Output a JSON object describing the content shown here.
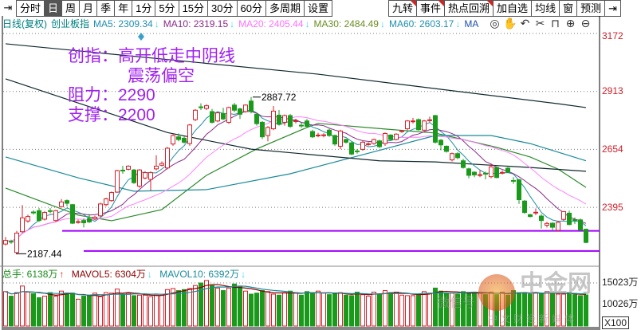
{
  "toolbar": {
    "left_icon": "pin-arrow-icon",
    "tabs": [
      "分时",
      "日",
      "周",
      "月",
      "季",
      "年",
      "1分",
      "5分",
      "15分",
      "30分",
      "60分",
      "多周期",
      "设置"
    ],
    "selected": "日",
    "right_tabs": [
      {
        "label": "九转",
        "flag": true
      },
      {
        "label": "事件",
        "flag": true
      },
      {
        "label": "热点回溯",
        "flag": true
      },
      {
        "label": "加自选",
        "flag": false
      },
      {
        "label": "均线",
        "flag": false
      },
      {
        "label": "窗",
        "flag": false
      },
      {
        "label": "预测",
        "flag": false
      }
    ],
    "right_icon": "collapse-arrow-icon"
  },
  "legend": {
    "period": "日线(复权)",
    "name": "创业板指",
    "ma": [
      {
        "label": "MA5: 2309.34",
        "color": "#1f8fb0",
        "trend": "↓"
      },
      {
        "label": "MA10: 2319.15",
        "color": "#8b2a8b",
        "trend": "↓"
      },
      {
        "label": "MA20: 2405.44",
        "color": "#ff70ff",
        "trend": "↓"
      },
      {
        "label": "MA30: 2484.49",
        "color": "#6b8e23",
        "trend": "↓"
      },
      {
        "label": "MA60: 2603.17",
        "color": "#1e90b0",
        "trend": "↓"
      },
      {
        "label": "MA",
        "color": "#1e50b0",
        "trend": ""
      }
    ],
    "trend_color": "#40d8f0"
  },
  "tools": [
    "eye-icon",
    "hand-icon",
    "undo-icon",
    "scissors-icon",
    "lock-icon",
    "zoom-in-icon",
    "zoom-out-icon"
  ],
  "annotation": {
    "line1": "创指：高开低走中阴线",
    "line2": "震荡偏空",
    "line3": "阻力：2290",
    "line4": "支撑：2200",
    "color": "#a020f0"
  },
  "chart_data": {
    "type": "candlestick",
    "price_axis": {
      "ticks": [
        3172,
        2913,
        2654,
        2395
      ],
      "labels": [
        "3172",
        "2913",
        "2654",
        "2395"
      ]
    },
    "high_label": "2887.72",
    "low_label": "2187.44",
    "up_color": "#d4202a",
    "down_color": "#1a9a1a",
    "drawn_lines": [
      {
        "price": 2290,
        "color": "#a000ff"
      },
      {
        "price": 2200,
        "color": "#a000ff"
      }
    ],
    "candles_ohlc": [
      [
        2231,
        2262,
        2225,
        2247
      ],
      [
        2243,
        2250,
        2232,
        2240
      ],
      [
        2193,
        2290,
        2187.44,
        2280
      ],
      [
        2286,
        2405,
        2280,
        2348
      ],
      [
        2334,
        2362,
        2326,
        2354
      ],
      [
        2374,
        2382,
        2362,
        2370
      ],
      [
        2380,
        2392,
        2330,
        2336
      ],
      [
        2342,
        2378,
        2336,
        2372
      ],
      [
        2380,
        2392,
        2368,
        2377
      ],
      [
        2336,
        2384,
        2330,
        2380
      ],
      [
        2398,
        2432,
        2395,
        2419
      ],
      [
        2425,
        2430,
        2400,
        2413
      ],
      [
        2407,
        2410,
        2320,
        2324
      ],
      [
        2328,
        2340,
        2322,
        2331
      ],
      [
        2336,
        2345,
        2305,
        2326
      ],
      [
        2344,
        2365,
        2325,
        2330
      ],
      [
        2344,
        2358,
        2338,
        2351
      ],
      [
        2357,
        2415,
        2352,
        2410
      ],
      [
        2407,
        2438,
        2400,
        2433
      ],
      [
        2425,
        2466,
        2420,
        2461
      ],
      [
        2463,
        2563,
        2460,
        2559
      ],
      [
        2561,
        2580,
        2545,
        2558
      ],
      [
        2565,
        2583,
        2560,
        2579
      ],
      [
        2562,
        2566,
        2500,
        2505
      ],
      [
        2490,
        2566,
        2482,
        2562
      ],
      [
        2526,
        2556,
        2520,
        2550
      ],
      [
        2520,
        2556,
        2470,
        2550
      ],
      [
        2567,
        2628,
        2560,
        2579
      ],
      [
        2583,
        2600,
        2578,
        2591
      ],
      [
        2571,
        2665,
        2565,
        2659
      ],
      [
        2678,
        2722,
        2670,
        2716
      ],
      [
        2710,
        2725,
        2690,
        2698
      ],
      [
        2704,
        2712,
        2680,
        2686
      ],
      [
        2680,
        2768,
        2670,
        2763
      ],
      [
        2787,
        2834,
        2780,
        2829
      ],
      [
        2844,
        2860,
        2830,
        2842
      ],
      [
        2837,
        2855,
        2830,
        2849
      ],
      [
        2823,
        2835,
        2770,
        2775
      ],
      [
        2781,
        2822,
        2775,
        2817
      ],
      [
        2814,
        2840,
        2785,
        2790
      ],
      [
        2775,
        2845,
        2768,
        2841
      ],
      [
        2852,
        2862,
        2820,
        2829
      ],
      [
        2835,
        2840,
        2790,
        2811
      ],
      [
        2823,
        2856,
        2818,
        2852
      ],
      [
        2870,
        2887.72,
        2815,
        2823
      ],
      [
        2811,
        2815,
        2760,
        2769
      ],
      [
        2775,
        2780,
        2700,
        2710
      ],
      [
        2716,
        2758,
        2690,
        2752
      ],
      [
        2746,
        2848,
        2740,
        2825
      ],
      [
        2807,
        2830,
        2760,
        2766
      ],
      [
        2775,
        2810,
        2760,
        2805
      ],
      [
        2805,
        2812,
        2750,
        2757
      ],
      [
        2779,
        2790,
        2770,
        2782
      ],
      [
        2762,
        2775,
        2750,
        2760
      ],
      [
        2781,
        2790,
        2750,
        2757
      ],
      [
        2734,
        2742,
        2705,
        2710
      ],
      [
        2716,
        2728,
        2708,
        2718
      ],
      [
        2716,
        2726,
        2708,
        2719
      ],
      [
        2740,
        2746,
        2710,
        2716
      ],
      [
        2716,
        2720,
        2670,
        2678
      ],
      [
        2668,
        2742,
        2655,
        2736
      ],
      [
        2698,
        2702,
        2680,
        2686
      ],
      [
        2683,
        2688,
        2628,
        2633
      ],
      [
        2647,
        2655,
        2635,
        2645
      ],
      [
        2654,
        2692,
        2648,
        2686
      ],
      [
        2677,
        2686,
        2670,
        2679
      ],
      [
        2680,
        2702,
        2675,
        2698
      ],
      [
        2692,
        2697,
        2660,
        2666
      ],
      [
        2680,
        2730,
        2670,
        2725
      ],
      [
        2718,
        2722,
        2695,
        2698
      ],
      [
        2698,
        2726,
        2694,
        2722
      ],
      [
        2735,
        2740,
        2728,
        2737
      ],
      [
        2746,
        2785,
        2740,
        2781
      ],
      [
        2779,
        2795,
        2770,
        2781
      ],
      [
        2787,
        2792,
        2738,
        2742
      ],
      [
        2740,
        2786,
        2735,
        2781
      ],
      [
        2784,
        2800,
        2775,
        2786
      ],
      [
        2805,
        2808,
        2680,
        2686
      ],
      [
        2695,
        2700,
        2650,
        2674
      ],
      [
        2668,
        2672,
        2640,
        2645
      ],
      [
        2607,
        2640,
        2600,
        2635
      ],
      [
        2635,
        2642,
        2610,
        2617
      ],
      [
        2603,
        2612,
        2568,
        2573
      ],
      [
        2567,
        2572,
        2525,
        2538
      ],
      [
        2552,
        2556,
        2530,
        2540
      ],
      [
        2539,
        2560,
        2530,
        2541
      ],
      [
        2547,
        2555,
        2520,
        2545
      ],
      [
        2532,
        2590,
        2525,
        2576
      ],
      [
        2573,
        2578,
        2525,
        2528
      ],
      [
        2549,
        2560,
        2542,
        2551
      ],
      [
        2570,
        2575,
        2548,
        2552
      ],
      [
        2515,
        2530,
        2500,
        2513
      ],
      [
        2518,
        2522,
        2410,
        2429
      ],
      [
        2423,
        2428,
        2366,
        2372
      ],
      [
        2362,
        2366,
        2350,
        2354
      ],
      [
        2371,
        2390,
        2360,
        2373
      ],
      [
        2356,
        2365,
        2300,
        2336
      ],
      [
        2315,
        2330,
        2305,
        2323
      ],
      [
        2324,
        2328,
        2290,
        2306
      ],
      [
        2292,
        2335,
        2288,
        2328
      ],
      [
        2341,
        2378,
        2335,
        2376
      ],
      [
        2369,
        2380,
        2315,
        2318
      ],
      [
        2340,
        2350,
        2320,
        2338
      ],
      [
        2339,
        2345,
        2290,
        2294
      ],
      [
        2297,
        2300,
        2235,
        2238
      ]
    ],
    "ma_computed": [
      {
        "period": 5,
        "color": "#1f8fa5"
      },
      {
        "period": 10,
        "color": "#8b2a8b"
      },
      {
        "period": 20,
        "color": "#ff80ff"
      }
    ],
    "ma_anchor_lines": [
      {
        "key": "ma30",
        "color": "#2a8a2a",
        "points": [
          [
            0,
            2481
          ],
          [
            13,
            2360
          ],
          [
            19,
            2335
          ],
          [
            28,
            2385
          ],
          [
            36,
            2538
          ],
          [
            45,
            2656
          ],
          [
            54,
            2752
          ],
          [
            56,
            2770
          ],
          [
            68,
            2745
          ],
          [
            77,
            2727
          ],
          [
            88,
            2663
          ],
          [
            94,
            2620
          ],
          [
            99,
            2566
          ],
          [
            104,
            2484
          ]
        ]
      },
      {
        "key": "ma60",
        "color": "#1a8a9a",
        "points": [
          [
            0,
            2620
          ],
          [
            13,
            2527
          ],
          [
            23,
            2467
          ],
          [
            36,
            2474
          ],
          [
            51,
            2545
          ],
          [
            67,
            2650
          ],
          [
            77,
            2716
          ],
          [
            87,
            2716
          ],
          [
            94,
            2680
          ],
          [
            104,
            2603
          ]
        ]
      },
      {
        "key": "ma_long_1",
        "color": "#10282e",
        "points": [
          [
            0,
            2969
          ],
          [
            29,
            2729
          ],
          [
            44,
            2655
          ],
          [
            67,
            2603
          ],
          [
            77,
            2598
          ],
          [
            94,
            2573
          ],
          [
            104,
            2556
          ]
        ]
      },
      {
        "key": "ma_long_2",
        "color": "#10282e",
        "points": [
          [
            0,
            3126
          ],
          [
            56,
            2990
          ],
          [
            99,
            2858
          ],
          [
            104,
            2841
          ]
        ]
      }
    ],
    "volume": {
      "unit": "万",
      "values": [
        6800,
        5900,
        6600,
        7900,
        6700,
        6400,
        5600,
        5900,
        6600,
        5900,
        6900,
        6500,
        6500,
        5300,
        5900,
        6000,
        6500,
        5800,
        6600,
        6500,
        7300,
        6200,
        6500,
        6000,
        6100,
        6100,
        5800,
        6100,
        6100,
        7200,
        7400,
        7000,
        7200,
        7400,
        8000,
        8500,
        9000,
        8000,
        7500,
        7000,
        7500,
        8300,
        7800,
        6900,
        6300,
        6500,
        7000,
        6800,
        6300,
        6100,
        6600,
        6900,
        6600,
        6100,
        6800,
        6500,
        6900,
        6500,
        6200,
        6400,
        6600,
        6100,
        6000,
        6700,
        6200,
        5900,
        6700,
        6300,
        7000,
        6600,
        6700,
        6100,
        6000,
        6000,
        6300,
        6800,
        6500,
        7500,
        6900,
        6500,
        6500,
        6300,
        6800,
        6400,
        6700,
        6500,
        6200,
        6700,
        6200,
        6700,
        6100,
        7000,
        6600,
        6600,
        6300,
        6600,
        6400,
        6800,
        6400,
        6300,
        6300,
        6600,
        6200,
        6000,
        6138
      ],
      "mavol_colors": {
        "mavol5": "#8b0000",
        "mavol10": "#1a8a9a"
      },
      "axis_labels": [
        "15023万",
        "10026万"
      ],
      "multiplier": "X100"
    }
  },
  "volume_legend": {
    "total": "总手: 6138万",
    "total_trend": "↑",
    "mavol5": "MAVOL5: 6304万",
    "mavol5_trend": "↓",
    "mavol10": "MAVOL10: 6392万",
    "mavol10_trend": "↓"
  },
  "watermark": {
    "brand": "中金网",
    "sub": "中文财经新媒体",
    "wechat": "微信号"
  }
}
